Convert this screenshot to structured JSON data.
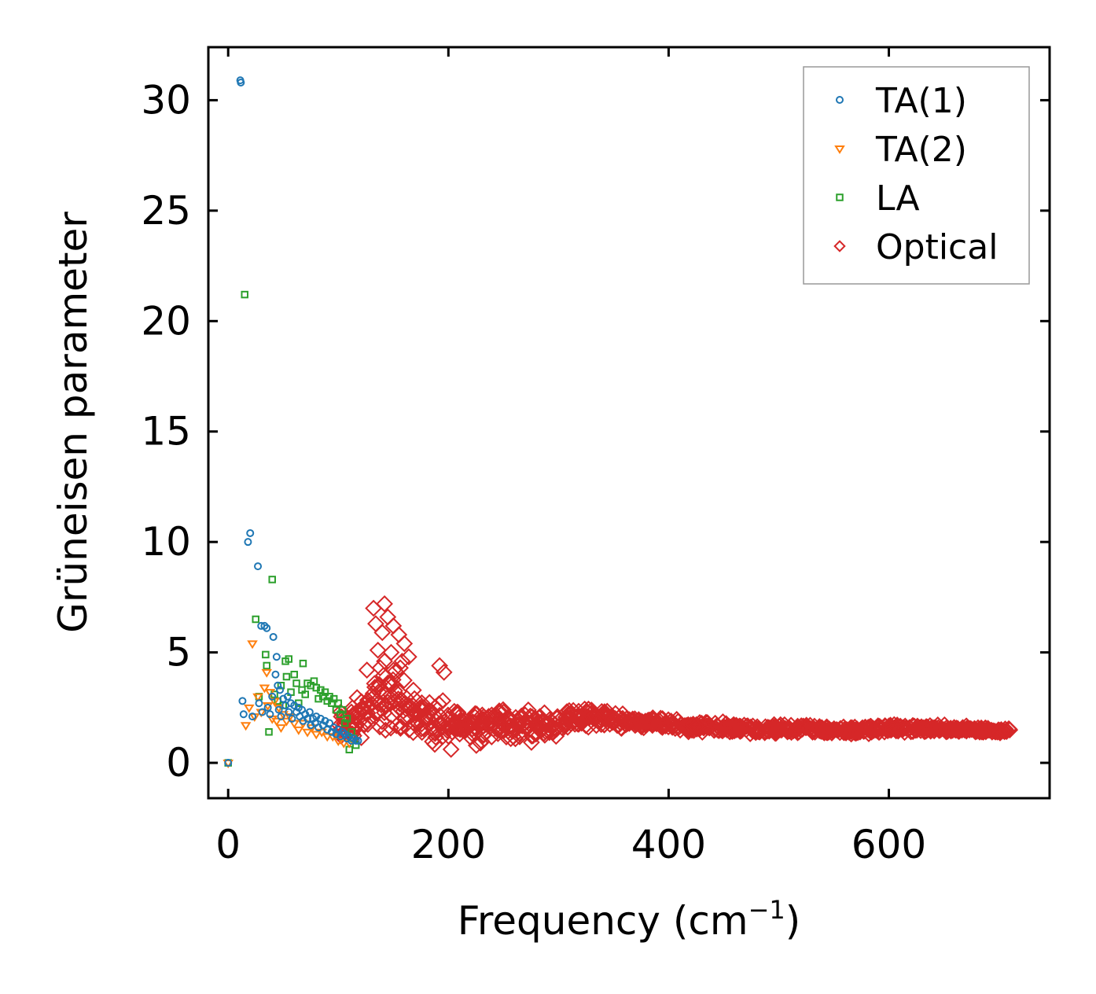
{
  "chart_data": {
    "type": "scatter",
    "title": "",
    "xlabel": "Frequency (cm",
    "xlabel_sup": "−1",
    "xlabel_close": ")",
    "ylabel": "Grüneisen parameter",
    "xlim": [
      -18,
      746
    ],
    "ylim": [
      -1.6,
      32.4
    ],
    "xticks": [
      0,
      200,
      400,
      600
    ],
    "yticks": [
      0,
      5,
      10,
      15,
      20,
      25,
      30
    ],
    "xtick_labels": [
      "0",
      "200",
      "400",
      "600"
    ],
    "ytick_labels": [
      "0",
      "5",
      "10",
      "15",
      "20",
      "25",
      "30"
    ],
    "legend_position": "top-right",
    "series": [
      {
        "name": "TA(1)",
        "marker": "circle",
        "color": "#1f77b4",
        "points": [
          [
            0,
            0
          ],
          [
            11,
            30.9
          ],
          [
            11.5,
            30.8
          ],
          [
            13,
            2.8
          ],
          [
            14,
            2.2
          ],
          [
            18,
            10.0
          ],
          [
            20,
            10.4
          ],
          [
            22,
            2.1
          ],
          [
            27,
            8.9
          ],
          [
            28,
            2.7
          ],
          [
            30,
            6.2
          ],
          [
            31,
            2.3
          ],
          [
            33,
            6.2
          ],
          [
            35,
            6.1
          ],
          [
            36,
            2.5
          ],
          [
            38,
            2.2
          ],
          [
            40,
            3.0
          ],
          [
            41,
            5.7
          ],
          [
            43,
            4.0
          ],
          [
            44,
            4.8
          ],
          [
            45,
            3.5
          ],
          [
            46,
            2.4
          ],
          [
            47,
            3.3
          ],
          [
            48,
            2.1
          ],
          [
            50,
            2.9
          ],
          [
            52,
            2.6
          ],
          [
            54,
            3.0
          ],
          [
            55,
            2.3
          ],
          [
            57,
            2.7
          ],
          [
            58,
            2.0
          ],
          [
            60,
            2.6
          ],
          [
            62,
            2.3
          ],
          [
            64,
            2.5
          ],
          [
            65,
            2.1
          ],
          [
            67,
            2.4
          ],
          [
            68,
            1.9
          ],
          [
            70,
            2.2
          ],
          [
            72,
            2.0
          ],
          [
            74,
            2.3
          ],
          [
            75,
            1.7
          ],
          [
            77,
            2.0
          ],
          [
            79,
            1.8
          ],
          [
            80,
            2.1
          ],
          [
            82,
            1.6
          ],
          [
            84,
            2.0
          ],
          [
            86,
            1.7
          ],
          [
            88,
            1.9
          ],
          [
            90,
            1.5
          ],
          [
            92,
            1.8
          ],
          [
            94,
            1.4
          ],
          [
            96,
            1.6
          ],
          [
            98,
            1.3
          ],
          [
            100,
            1.5
          ],
          [
            102,
            1.2
          ],
          [
            104,
            1.4
          ],
          [
            106,
            1.3
          ],
          [
            108,
            1.1
          ],
          [
            110,
            1.2
          ],
          [
            112,
            1.0
          ],
          [
            114,
            1.1
          ],
          [
            116,
            1.0
          ],
          [
            118,
            1.0
          ]
        ]
      },
      {
        "name": "TA(2)",
        "marker": "triangle-down",
        "color": "#ff7f0e",
        "points": [
          [
            0,
            0
          ],
          [
            16,
            1.7
          ],
          [
            19,
            2.5
          ],
          [
            22,
            5.4
          ],
          [
            24,
            2.1
          ],
          [
            27,
            3.0
          ],
          [
            30,
            2.3
          ],
          [
            33,
            3.4
          ],
          [
            35,
            4.1
          ],
          [
            36,
            2.6
          ],
          [
            38,
            3.2
          ],
          [
            40,
            2.0
          ],
          [
            42,
            2.8
          ],
          [
            44,
            1.9
          ],
          [
            46,
            2.5
          ],
          [
            48,
            1.6
          ],
          [
            50,
            2.2
          ],
          [
            53,
            1.9
          ],
          [
            56,
            2.1
          ],
          [
            60,
            1.8
          ],
          [
            64,
            1.5
          ],
          [
            68,
            1.8
          ],
          [
            72,
            1.4
          ],
          [
            76,
            1.6
          ],
          [
            80,
            1.3
          ],
          [
            85,
            1.4
          ],
          [
            90,
            1.2
          ],
          [
            95,
            1.2
          ],
          [
            100,
            1.0
          ],
          [
            105,
            0.9
          ],
          [
            110,
            0.9
          ]
        ]
      },
      {
        "name": "LA",
        "marker": "square",
        "color": "#2ca02c",
        "points": [
          [
            0,
            0
          ],
          [
            15,
            21.2
          ],
          [
            25,
            6.5
          ],
          [
            28,
            3.0
          ],
          [
            34,
            4.9
          ],
          [
            35,
            4.4
          ],
          [
            37,
            1.4
          ],
          [
            40,
            8.3
          ],
          [
            42,
            3.1
          ],
          [
            45,
            2.8
          ],
          [
            48,
            3.5
          ],
          [
            50,
            2.6
          ],
          [
            52,
            4.6
          ],
          [
            53,
            3.9
          ],
          [
            55,
            4.7
          ],
          [
            57,
            3.2
          ],
          [
            60,
            4.0
          ],
          [
            62,
            3.6
          ],
          [
            64,
            2.7
          ],
          [
            67,
            3.3
          ],
          [
            68,
            4.5
          ],
          [
            70,
            3.1
          ],
          [
            72,
            3.6
          ],
          [
            75,
            3.5
          ],
          [
            78,
            3.7
          ],
          [
            80,
            3.4
          ],
          [
            82,
            2.9
          ],
          [
            84,
            3.3
          ],
          [
            86,
            3.0
          ],
          [
            88,
            3.2
          ],
          [
            90,
            2.8
          ],
          [
            92,
            3.0
          ],
          [
            94,
            2.7
          ],
          [
            96,
            2.9
          ],
          [
            98,
            2.4
          ],
          [
            100,
            2.7
          ],
          [
            102,
            2.2
          ],
          [
            104,
            2.4
          ],
          [
            106,
            1.8
          ],
          [
            108,
            2.0
          ],
          [
            110,
            0.6
          ],
          [
            112,
            1.4
          ],
          [
            114,
            1.1
          ],
          [
            116,
            0.8
          ]
        ]
      },
      {
        "name": "Optical",
        "marker": "diamond",
        "color": "#d62728",
        "envelope": [
          [
            100,
            0.8,
            2.5
          ],
          [
            110,
            0.4,
            3.0
          ],
          [
            120,
            0.8,
            3.4
          ],
          [
            130,
            0.9,
            3.9
          ],
          [
            140,
            0.8,
            4.7
          ],
          [
            150,
            0.9,
            5.6
          ],
          [
            160,
            0.9,
            4.5
          ],
          [
            170,
            0.9,
            3.7
          ],
          [
            180,
            0.6,
            3.3
          ],
          [
            190,
            0.1,
            3.2
          ],
          [
            200,
            0.3,
            3.0
          ],
          [
            210,
            0.5,
            3.0
          ],
          [
            220,
            0.6,
            2.9
          ],
          [
            230,
            0.6,
            3.0
          ],
          [
            240,
            0.6,
            2.9
          ],
          [
            250,
            0.6,
            2.8
          ],
          [
            260,
            0.7,
            2.7
          ],
          [
            270,
            0.8,
            2.6
          ],
          [
            280,
            0.8,
            2.6
          ],
          [
            290,
            0.9,
            2.6
          ],
          [
            300,
            1.1,
            2.6
          ],
          [
            310,
            1.3,
            2.6
          ],
          [
            320,
            1.4,
            2.6
          ],
          [
            330,
            1.5,
            2.7
          ],
          [
            340,
            1.6,
            2.6
          ],
          [
            350,
            1.5,
            2.4
          ],
          [
            360,
            1.4,
            2.3
          ],
          [
            370,
            1.5,
            2.2
          ],
          [
            380,
            1.5,
            2.1
          ],
          [
            390,
            1.5,
            2.1
          ],
          [
            400,
            1.4,
            2.1
          ],
          [
            420,
            1.3,
            2.0
          ],
          [
            440,
            1.3,
            1.9
          ],
          [
            460,
            1.2,
            1.9
          ],
          [
            480,
            1.2,
            1.8
          ],
          [
            500,
            1.2,
            1.8
          ],
          [
            520,
            1.2,
            1.8
          ],
          [
            540,
            1.2,
            1.8
          ],
          [
            560,
            1.2,
            1.7
          ],
          [
            580,
            1.2,
            1.8
          ],
          [
            600,
            1.3,
            1.8
          ],
          [
            620,
            1.3,
            1.8
          ],
          [
            640,
            1.3,
            1.8
          ],
          [
            660,
            1.3,
            1.7
          ],
          [
            680,
            1.3,
            1.7
          ],
          [
            700,
            1.3,
            1.6
          ],
          [
            710,
            1.4,
            1.6
          ]
        ],
        "outliers": [
          [
            132,
            7.0
          ],
          [
            142,
            7.2
          ],
          [
            134,
            6.3
          ],
          [
            145,
            6.6
          ],
          [
            150,
            6.2
          ],
          [
            140,
            5.9
          ],
          [
            155,
            5.8
          ],
          [
            160,
            5.4
          ],
          [
            136,
            5.1
          ],
          [
            148,
            5.0
          ],
          [
            164,
            4.8
          ],
          [
            158,
            4.6
          ],
          [
            142,
            4.6
          ],
          [
            192,
            4.4
          ],
          [
            196,
            4.1
          ],
          [
            126,
            4.2
          ],
          [
            138,
            4.3
          ]
        ]
      }
    ]
  }
}
